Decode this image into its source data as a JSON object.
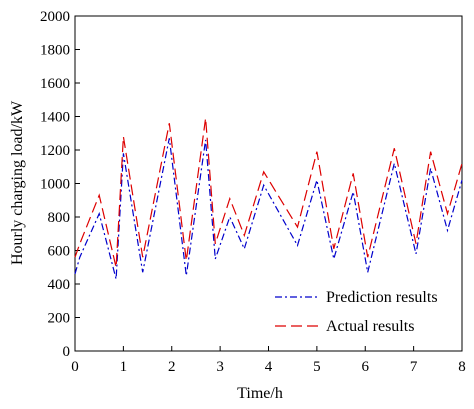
{
  "chart_data": {
    "type": "line",
    "title": "",
    "xlabel": "Time/h",
    "ylabel": "Hourly charging load/kW",
    "xlim": [
      0,
      8
    ],
    "ylim": [
      0,
      2000
    ],
    "x_ticks": [
      0,
      1,
      2,
      3,
      4,
      5,
      6,
      7,
      8
    ],
    "y_ticks": [
      0,
      200,
      400,
      600,
      800,
      1000,
      1200,
      1400,
      1600,
      1800,
      2000
    ],
    "grid": false,
    "legend_position": "bottom-right",
    "series": [
      {
        "name": "Prediction results",
        "color": "#0000cc",
        "line_style": "dash-dot",
        "points": [
          [
            0.0,
            460
          ],
          [
            0.1,
            560
          ],
          [
            0.5,
            820
          ],
          [
            0.85,
            430
          ],
          [
            1.0,
            1180
          ],
          [
            1.4,
            470
          ],
          [
            1.95,
            1270
          ],
          [
            2.3,
            450
          ],
          [
            2.7,
            1260
          ],
          [
            2.9,
            550
          ],
          [
            3.2,
            800
          ],
          [
            3.5,
            610
          ],
          [
            3.9,
            990
          ],
          [
            4.6,
            630
          ],
          [
            5.0,
            1020
          ],
          [
            5.35,
            550
          ],
          [
            5.75,
            950
          ],
          [
            6.05,
            470
          ],
          [
            6.6,
            1120
          ],
          [
            7.05,
            580
          ],
          [
            7.35,
            1090
          ],
          [
            7.7,
            720
          ],
          [
            8.0,
            1020
          ]
        ]
      },
      {
        "name": "Actual results",
        "color": "#dd0000",
        "line_style": "dashed",
        "points": [
          [
            0.0,
            560
          ],
          [
            0.1,
            640
          ],
          [
            0.5,
            930
          ],
          [
            0.85,
            500
          ],
          [
            1.0,
            1280
          ],
          [
            1.4,
            560
          ],
          [
            1.95,
            1360
          ],
          [
            2.3,
            540
          ],
          [
            2.7,
            1390
          ],
          [
            2.9,
            640
          ],
          [
            3.2,
            910
          ],
          [
            3.5,
            690
          ],
          [
            3.9,
            1070
          ],
          [
            4.6,
            740
          ],
          [
            5.0,
            1190
          ],
          [
            5.35,
            610
          ],
          [
            5.75,
            1060
          ],
          [
            6.05,
            560
          ],
          [
            6.6,
            1210
          ],
          [
            7.05,
            640
          ],
          [
            7.35,
            1190
          ],
          [
            7.7,
            820
          ],
          [
            8.0,
            1120
          ]
        ]
      }
    ]
  }
}
